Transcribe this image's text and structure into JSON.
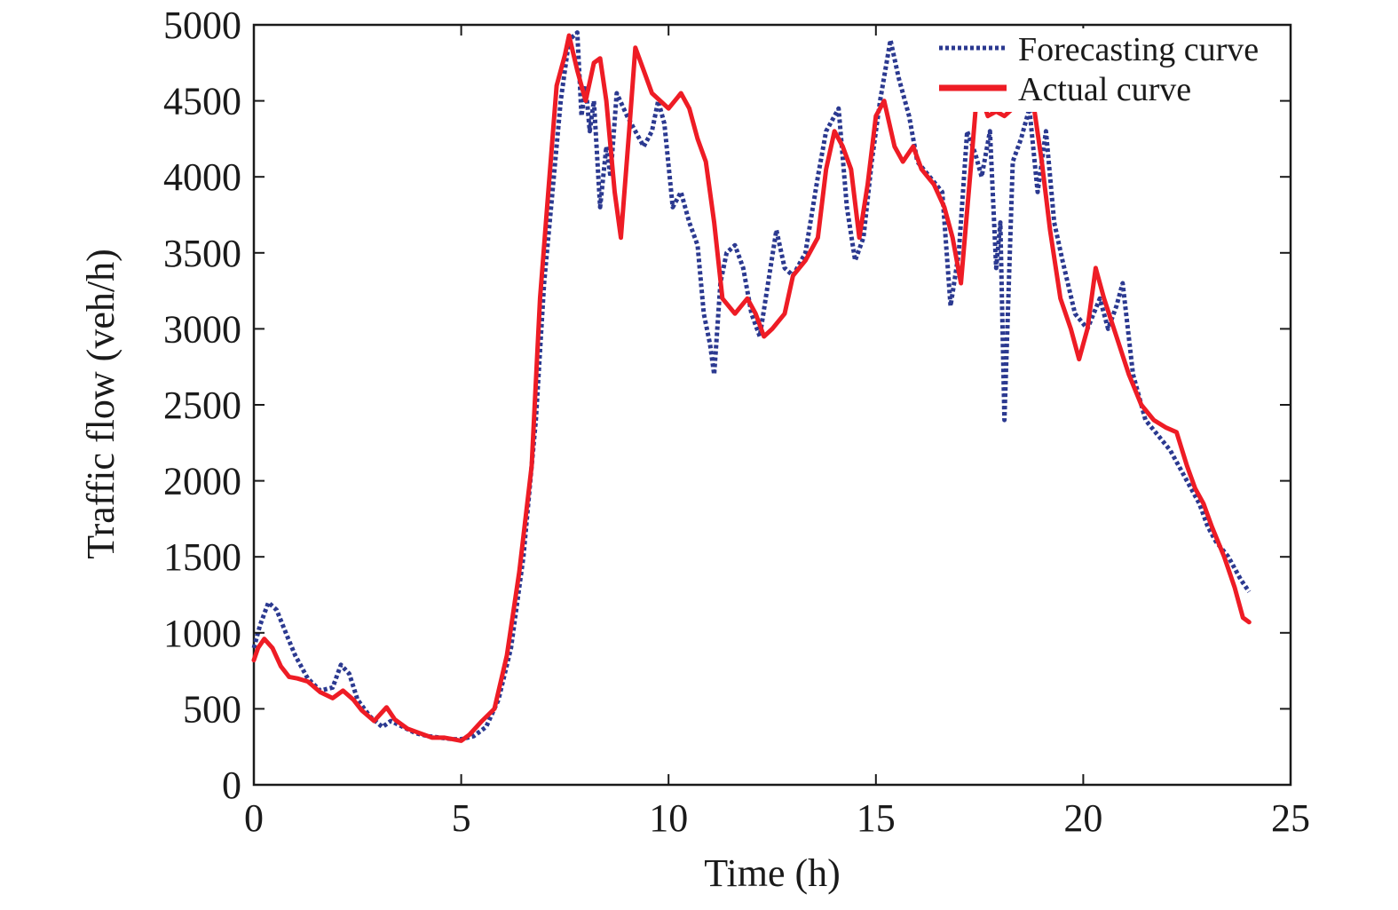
{
  "chart_data": {
    "type": "line",
    "title": "",
    "xlabel": "Time (h)",
    "ylabel": "Traffic flow (veh/h)",
    "xlim": [
      0,
      25
    ],
    "ylim": [
      0,
      5000
    ],
    "xticks": [
      0,
      5,
      10,
      15,
      20,
      25
    ],
    "yticks": [
      0,
      500,
      1000,
      1500,
      2000,
      2500,
      3000,
      3500,
      4000,
      4500,
      5000
    ],
    "grid": false,
    "legend_position": "top-right",
    "series": [
      {
        "name": "Forecasting curve",
        "color": "#2b3990",
        "style": "dotted",
        "points": [
          [
            0,
            900
          ],
          [
            0.15,
            1050
          ],
          [
            0.35,
            1200
          ],
          [
            0.55,
            1150
          ],
          [
            0.8,
            980
          ],
          [
            1.0,
            850
          ],
          [
            1.3,
            700
          ],
          [
            1.6,
            620
          ],
          [
            1.9,
            640
          ],
          [
            2.1,
            790
          ],
          [
            2.3,
            730
          ],
          [
            2.5,
            560
          ],
          [
            2.8,
            450
          ],
          [
            3.1,
            380
          ],
          [
            3.3,
            420
          ],
          [
            3.6,
            380
          ],
          [
            3.9,
            340
          ],
          [
            4.2,
            320
          ],
          [
            4.5,
            310
          ],
          [
            4.8,
            300
          ],
          [
            5.0,
            300
          ],
          [
            5.3,
            320
          ],
          [
            5.6,
            380
          ],
          [
            5.9,
            560
          ],
          [
            6.2,
            900
          ],
          [
            6.5,
            1500
          ],
          [
            6.8,
            2400
          ],
          [
            7.0,
            3300
          ],
          [
            7.2,
            3900
          ],
          [
            7.4,
            4500
          ],
          [
            7.6,
            4900
          ],
          [
            7.8,
            4950
          ],
          [
            7.9,
            4400
          ],
          [
            8.0,
            4600
          ],
          [
            8.1,
            4300
          ],
          [
            8.2,
            4500
          ],
          [
            8.35,
            3800
          ],
          [
            8.5,
            4200
          ],
          [
            8.6,
            4000
          ],
          [
            8.75,
            4550
          ],
          [
            9.0,
            4400
          ],
          [
            9.2,
            4300
          ],
          [
            9.4,
            4200
          ],
          [
            9.6,
            4300
          ],
          [
            9.75,
            4500
          ],
          [
            9.9,
            4350
          ],
          [
            10.1,
            3800
          ],
          [
            10.3,
            3900
          ],
          [
            10.5,
            3700
          ],
          [
            10.7,
            3550
          ],
          [
            10.85,
            3100
          ],
          [
            11.0,
            2900
          ],
          [
            11.1,
            2700
          ],
          [
            11.25,
            3300
          ],
          [
            11.4,
            3500
          ],
          [
            11.6,
            3550
          ],
          [
            11.8,
            3400
          ],
          [
            12.0,
            3100
          ],
          [
            12.2,
            2950
          ],
          [
            12.4,
            3300
          ],
          [
            12.6,
            3650
          ],
          [
            12.8,
            3400
          ],
          [
            13.0,
            3350
          ],
          [
            13.3,
            3500
          ],
          [
            13.6,
            4000
          ],
          [
            13.8,
            4300
          ],
          [
            14.1,
            4450
          ],
          [
            14.3,
            3800
          ],
          [
            14.5,
            3450
          ],
          [
            14.7,
            3600
          ],
          [
            14.9,
            4100
          ],
          [
            15.1,
            4500
          ],
          [
            15.35,
            4900
          ],
          [
            15.55,
            4650
          ],
          [
            15.8,
            4400
          ],
          [
            16.0,
            4100
          ],
          [
            16.3,
            4000
          ],
          [
            16.6,
            3900
          ],
          [
            16.8,
            3150
          ],
          [
            17.0,
            3500
          ],
          [
            17.2,
            4300
          ],
          [
            17.4,
            4150
          ],
          [
            17.55,
            4000
          ],
          [
            17.75,
            4300
          ],
          [
            17.9,
            3400
          ],
          [
            18.0,
            3700
          ],
          [
            18.1,
            2400
          ],
          [
            18.3,
            4100
          ],
          [
            18.5,
            4250
          ],
          [
            18.7,
            4450
          ],
          [
            18.9,
            3900
          ],
          [
            19.1,
            4300
          ],
          [
            19.3,
            3700
          ],
          [
            19.5,
            3450
          ],
          [
            19.8,
            3100
          ],
          [
            20.1,
            3000
          ],
          [
            20.4,
            3200
          ],
          [
            20.6,
            3000
          ],
          [
            20.8,
            3150
          ],
          [
            20.95,
            3300
          ],
          [
            21.2,
            2700
          ],
          [
            21.5,
            2400
          ],
          [
            21.8,
            2300
          ],
          [
            22.1,
            2200
          ],
          [
            22.4,
            2050
          ],
          [
            22.6,
            1950
          ],
          [
            22.8,
            1850
          ],
          [
            23.0,
            1700
          ],
          [
            23.2,
            1600
          ],
          [
            23.5,
            1500
          ],
          [
            23.8,
            1350
          ],
          [
            24.0,
            1270
          ]
        ]
      },
      {
        "name": "Actual curve",
        "color": "#ee1c25",
        "style": "solid",
        "points": [
          [
            0,
            820
          ],
          [
            0.1,
            900
          ],
          [
            0.25,
            960
          ],
          [
            0.45,
            900
          ],
          [
            0.65,
            780
          ],
          [
            0.85,
            710
          ],
          [
            1.05,
            700
          ],
          [
            1.3,
            680
          ],
          [
            1.6,
            610
          ],
          [
            1.9,
            570
          ],
          [
            2.15,
            620
          ],
          [
            2.4,
            560
          ],
          [
            2.6,
            490
          ],
          [
            2.9,
            420
          ],
          [
            3.2,
            510
          ],
          [
            3.4,
            430
          ],
          [
            3.7,
            370
          ],
          [
            4.0,
            340
          ],
          [
            4.3,
            310
          ],
          [
            4.6,
            310
          ],
          [
            5.0,
            290
          ],
          [
            5.2,
            330
          ],
          [
            5.5,
            420
          ],
          [
            5.8,
            500
          ],
          [
            6.1,
            850
          ],
          [
            6.4,
            1400
          ],
          [
            6.7,
            2100
          ],
          [
            6.9,
            3200
          ],
          [
            7.1,
            3900
          ],
          [
            7.3,
            4600
          ],
          [
            7.5,
            4800
          ],
          [
            7.6,
            4930
          ],
          [
            7.8,
            4700
          ],
          [
            8.0,
            4500
          ],
          [
            8.2,
            4750
          ],
          [
            8.35,
            4780
          ],
          [
            8.5,
            4500
          ],
          [
            8.7,
            3900
          ],
          [
            8.85,
            3600
          ],
          [
            9.05,
            4300
          ],
          [
            9.2,
            4850
          ],
          [
            9.4,
            4700
          ],
          [
            9.6,
            4550
          ],
          [
            9.8,
            4500
          ],
          [
            10.0,
            4450
          ],
          [
            10.3,
            4550
          ],
          [
            10.5,
            4450
          ],
          [
            10.7,
            4250
          ],
          [
            10.9,
            4100
          ],
          [
            11.1,
            3700
          ],
          [
            11.3,
            3200
          ],
          [
            11.6,
            3100
          ],
          [
            11.9,
            3200
          ],
          [
            12.1,
            3100
          ],
          [
            12.3,
            2950
          ],
          [
            12.5,
            3000
          ],
          [
            12.8,
            3100
          ],
          [
            13.0,
            3350
          ],
          [
            13.3,
            3450
          ],
          [
            13.6,
            3600
          ],
          [
            13.8,
            4050
          ],
          [
            14.0,
            4300
          ],
          [
            14.2,
            4200
          ],
          [
            14.4,
            4050
          ],
          [
            14.6,
            3600
          ],
          [
            14.8,
            3950
          ],
          [
            15.0,
            4400
          ],
          [
            15.2,
            4500
          ],
          [
            15.45,
            4200
          ],
          [
            15.65,
            4100
          ],
          [
            15.9,
            4200
          ],
          [
            16.1,
            4050
          ],
          [
            16.4,
            3950
          ],
          [
            16.65,
            3800
          ],
          [
            16.85,
            3600
          ],
          [
            17.05,
            3300
          ],
          [
            17.3,
            4100
          ],
          [
            17.45,
            4600
          ],
          [
            17.7,
            4400
          ],
          [
            17.9,
            4430
          ],
          [
            18.1,
            4400
          ],
          [
            18.3,
            4450
          ],
          [
            18.6,
            4500
          ],
          [
            18.8,
            4480
          ],
          [
            19.0,
            4100
          ],
          [
            19.2,
            3650
          ],
          [
            19.45,
            3200
          ],
          [
            19.7,
            3000
          ],
          [
            19.9,
            2800
          ],
          [
            20.1,
            3000
          ],
          [
            20.3,
            3400
          ],
          [
            20.5,
            3200
          ],
          [
            20.8,
            2950
          ],
          [
            21.1,
            2700
          ],
          [
            21.4,
            2500
          ],
          [
            21.7,
            2400
          ],
          [
            22.0,
            2350
          ],
          [
            22.25,
            2320
          ],
          [
            22.5,
            2100
          ],
          [
            22.7,
            1950
          ],
          [
            22.9,
            1850
          ],
          [
            23.1,
            1700
          ],
          [
            23.4,
            1500
          ],
          [
            23.65,
            1300
          ],
          [
            23.85,
            1100
          ],
          [
            24.0,
            1070
          ]
        ]
      }
    ]
  }
}
